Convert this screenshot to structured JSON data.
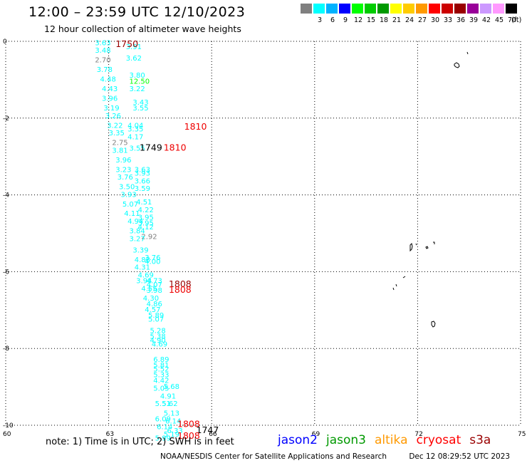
{
  "header": {
    "title": "12:00 – 23:59 UTC 12/10/2023",
    "subtitle": "12 hour collection of altimeter wave heights"
  },
  "legend": {
    "unit": "(ft)",
    "bins": [
      {
        "label": "",
        "color": "#808080"
      },
      {
        "label": "3",
        "color": "#00ffff"
      },
      {
        "label": "6",
        "color": "#00b2ff"
      },
      {
        "label": "9",
        "color": "#0000ff"
      },
      {
        "label": "12",
        "color": "#00ff00"
      },
      {
        "label": "15",
        "color": "#00cc00"
      },
      {
        "label": "18",
        "color": "#009900"
      },
      {
        "label": "21",
        "color": "#ffff00"
      },
      {
        "label": "24",
        "color": "#ffcc00"
      },
      {
        "label": "27",
        "color": "#ff9900"
      },
      {
        "label": "30",
        "color": "#ff0000"
      },
      {
        "label": "33",
        "color": "#cc0000"
      },
      {
        "label": "36",
        "color": "#990000"
      },
      {
        "label": "39",
        "color": "#990099"
      },
      {
        "label": "42",
        "color": "#cc99ff"
      },
      {
        "label": "45",
        "color": "#ff99ff"
      },
      {
        "label": "70",
        "color": "#000000"
      }
    ]
  },
  "axes": {
    "lon_ticks": [
      60,
      63,
      66,
      69,
      72,
      75
    ],
    "lat_ticks": [
      0,
      -2,
      -4,
      -6,
      -8,
      -10
    ],
    "lon_range": [
      60,
      75
    ],
    "lat_range": [
      -10,
      0
    ]
  },
  "chart_data": {
    "type": "scatter",
    "swh_ft": [
      {
        "lon": 62.6,
        "lat": -0.1,
        "v": "3.63",
        "color": "#00ffff"
      },
      {
        "lon": 63.5,
        "lat": -0.2,
        "v": "3.91",
        "color": "#00ffff"
      },
      {
        "lon": 62.6,
        "lat": -0.3,
        "v": "3.48",
        "color": "#00ffff"
      },
      {
        "lon": 63.5,
        "lat": -0.5,
        "v": "3.62",
        "color": "#00ffff"
      },
      {
        "lon": 62.6,
        "lat": -0.55,
        "v": "2.70",
        "color": "#808080"
      },
      {
        "lon": 62.65,
        "lat": -0.8,
        "v": "3.78",
        "color": "#00ffff"
      },
      {
        "lon": 63.6,
        "lat": -0.95,
        "v": "3.80",
        "color": "#00ffff"
      },
      {
        "lon": 62.75,
        "lat": -1.05,
        "v": "4.48",
        "color": "#00ffff"
      },
      {
        "lon": 63.6,
        "lat": -1.1,
        "v": "12.50",
        "color": "#00ff00"
      },
      {
        "lon": 62.8,
        "lat": -1.3,
        "v": "4.43",
        "color": "#00ffff"
      },
      {
        "lon": 63.6,
        "lat": -1.3,
        "v": "3.22",
        "color": "#00ffff"
      },
      {
        "lon": 62.8,
        "lat": -1.55,
        "v": "3.96",
        "color": "#00ffff"
      },
      {
        "lon": 63.7,
        "lat": -1.65,
        "v": "3.43",
        "color": "#00ffff"
      },
      {
        "lon": 62.85,
        "lat": -1.8,
        "v": "3.19",
        "color": "#00ffff"
      },
      {
        "lon": 63.7,
        "lat": -1.8,
        "v": "3.55",
        "color": "#00ffff"
      },
      {
        "lon": 62.9,
        "lat": -2.0,
        "v": "3.26",
        "color": "#00ffff"
      },
      {
        "lon": 62.95,
        "lat": -2.25,
        "v": "3.22",
        "color": "#00ffff"
      },
      {
        "lon": 63.55,
        "lat": -2.25,
        "v": "4.04",
        "color": "#00ffff"
      },
      {
        "lon": 63.55,
        "lat": -2.35,
        "v": "3.35",
        "color": "#00ffff"
      },
      {
        "lon": 63.0,
        "lat": -2.45,
        "v": "3.35",
        "color": "#00ffff"
      },
      {
        "lon": 63.55,
        "lat": -2.55,
        "v": "4.17",
        "color": "#00ffff"
      },
      {
        "lon": 63.1,
        "lat": -2.7,
        "v": "2.75",
        "color": "#808080"
      },
      {
        "lon": 63.6,
        "lat": -2.85,
        "v": "3.55",
        "color": "#00ffff"
      },
      {
        "lon": 63.1,
        "lat": -2.9,
        "v": "3.81",
        "color": "#00ffff"
      },
      {
        "lon": 63.2,
        "lat": -3.15,
        "v": "3.96",
        "color": "#00ffff"
      },
      {
        "lon": 63.2,
        "lat": -3.4,
        "v": "3.23",
        "color": "#00ffff"
      },
      {
        "lon": 63.75,
        "lat": -3.4,
        "v": "3.63",
        "color": "#00ffff"
      },
      {
        "lon": 63.75,
        "lat": -3.5,
        "v": "3.93",
        "color": "#00ffff"
      },
      {
        "lon": 63.25,
        "lat": -3.6,
        "v": "3.76",
        "color": "#00ffff"
      },
      {
        "lon": 63.75,
        "lat": -3.7,
        "v": "3.66",
        "color": "#00ffff"
      },
      {
        "lon": 63.3,
        "lat": -3.85,
        "v": "3.50",
        "color": "#00ffff"
      },
      {
        "lon": 63.75,
        "lat": -3.9,
        "v": "3.59",
        "color": "#00ffff"
      },
      {
        "lon": 63.35,
        "lat": -4.05,
        "v": "3.93",
        "color": "#00ffff"
      },
      {
        "lon": 63.8,
        "lat": -4.25,
        "v": "4.51",
        "color": "#00ffff"
      },
      {
        "lon": 63.4,
        "lat": -4.3,
        "v": "5.07",
        "color": "#00ffff"
      },
      {
        "lon": 63.85,
        "lat": -4.45,
        "v": "4.22",
        "color": "#00ffff"
      },
      {
        "lon": 63.45,
        "lat": -4.55,
        "v": "4.11",
        "color": "#00ffff"
      },
      {
        "lon": 63.85,
        "lat": -4.65,
        "v": "3.95",
        "color": "#00ffff"
      },
      {
        "lon": 63.55,
        "lat": -4.75,
        "v": "4.94",
        "color": "#00ffff"
      },
      {
        "lon": 63.85,
        "lat": -4.8,
        "v": "3.95",
        "color": "#00ffff"
      },
      {
        "lon": 63.85,
        "lat": -4.9,
        "v": "4.12",
        "color": "#00ffff"
      },
      {
        "lon": 63.6,
        "lat": -5.0,
        "v": "3.84",
        "color": "#00ffff"
      },
      {
        "lon": 63.95,
        "lat": -5.15,
        "v": "2.92",
        "color": "#808080"
      },
      {
        "lon": 63.6,
        "lat": -5.2,
        "v": "3.27",
        "color": "#00ffff"
      },
      {
        "lon": 63.7,
        "lat": -5.5,
        "v": "3.39",
        "color": "#00ffff"
      },
      {
        "lon": 64.05,
        "lat": -5.7,
        "v": "3.76",
        "color": "#00ffff"
      },
      {
        "lon": 63.75,
        "lat": -5.75,
        "v": "4.88",
        "color": "#00ffff"
      },
      {
        "lon": 64.05,
        "lat": -5.8,
        "v": "4.00",
        "color": "#00ffff"
      },
      {
        "lon": 63.75,
        "lat": -5.95,
        "v": "4.31",
        "color": "#00ffff"
      },
      {
        "lon": 63.85,
        "lat": -6.15,
        "v": "4.69",
        "color": "#00ffff"
      },
      {
        "lon": 63.8,
        "lat": -6.3,
        "v": "3.94",
        "color": "#00ffff"
      },
      {
        "lon": 64.1,
        "lat": -6.3,
        "v": "4.73",
        "color": "#00ffff"
      },
      {
        "lon": 64.1,
        "lat": -6.4,
        "v": "4.07",
        "color": "#00ffff"
      },
      {
        "lon": 63.95,
        "lat": -6.5,
        "v": "4.55",
        "color": "#00ffff"
      },
      {
        "lon": 64.1,
        "lat": -6.55,
        "v": "3.98",
        "color": "#00ffff"
      },
      {
        "lon": 64.0,
        "lat": -6.75,
        "v": "4.30",
        "color": "#00ffff"
      },
      {
        "lon": 64.1,
        "lat": -6.9,
        "v": "4.86",
        "color": "#00ffff"
      },
      {
        "lon": 64.05,
        "lat": -7.05,
        "v": "4.57",
        "color": "#00ffff"
      },
      {
        "lon": 64.15,
        "lat": -7.2,
        "v": "5.89",
        "color": "#00ffff"
      },
      {
        "lon": 64.15,
        "lat": -7.3,
        "v": "5.07",
        "color": "#00ffff"
      },
      {
        "lon": 64.2,
        "lat": -7.6,
        "v": "5.28",
        "color": "#00ffff"
      },
      {
        "lon": 64.2,
        "lat": -7.75,
        "v": "5.38",
        "color": "#00ffff"
      },
      {
        "lon": 64.2,
        "lat": -7.85,
        "v": "4.90",
        "color": "#00ffff"
      },
      {
        "lon": 64.25,
        "lat": -7.95,
        "v": "4.69",
        "color": "#00ffff"
      },
      {
        "lon": 64.3,
        "lat": -8.35,
        "v": "6.89",
        "color": "#00ffff"
      },
      {
        "lon": 64.3,
        "lat": -8.5,
        "v": "5.81",
        "color": "#00ffff"
      },
      {
        "lon": 64.3,
        "lat": -8.6,
        "v": "5.52",
        "color": "#00ffff"
      },
      {
        "lon": 64.3,
        "lat": -8.75,
        "v": "5.33",
        "color": "#00ffff"
      },
      {
        "lon": 64.3,
        "lat": -8.9,
        "v": "4.42",
        "color": "#00ffff"
      },
      {
        "lon": 64.6,
        "lat": -9.05,
        "v": "5.68",
        "color": "#00ffff"
      },
      {
        "lon": 64.3,
        "lat": -9.1,
        "v": "5.05",
        "color": "#00ffff"
      },
      {
        "lon": 64.5,
        "lat": -9.3,
        "v": "4.91",
        "color": "#00ffff"
      },
      {
        "lon": 64.35,
        "lat": -9.5,
        "v": "5.51",
        "color": "#00ffff"
      },
      {
        "lon": 64.55,
        "lat": -9.5,
        "v": "5.62",
        "color": "#00ffff"
      },
      {
        "lon": 64.6,
        "lat": -9.75,
        "v": "5.13",
        "color": "#00ffff"
      },
      {
        "lon": 64.35,
        "lat": -9.9,
        "v": "6.09",
        "color": "#00ffff"
      },
      {
        "lon": 64.65,
        "lat": -9.95,
        "v": "6.14",
        "color": "#00ffff"
      },
      {
        "lon": 64.4,
        "lat": -10.1,
        "v": "6.14",
        "color": "#00ffff"
      },
      {
        "lon": 64.7,
        "lat": -10.2,
        "v": "6.33",
        "color": "#00ffff"
      },
      {
        "lon": 64.6,
        "lat": -10.3,
        "v": "5.19",
        "color": "#00ffff"
      },
      {
        "lon": 64.35,
        "lat": -10.4,
        "v": "5.99",
        "color": "#00ffff"
      }
    ],
    "times": [
      {
        "lon": 63.2,
        "lat": -0.15,
        "t": "1750",
        "color": "#990000"
      },
      {
        "lon": 65.2,
        "lat": -2.3,
        "t": "1810",
        "color": "#ee0000"
      },
      {
        "lon": 63.9,
        "lat": -2.85,
        "t": "1749",
        "color": "#000000"
      },
      {
        "lon": 64.6,
        "lat": -2.85,
        "t": "1810",
        "color": "#ee0000"
      },
      {
        "lon": 64.75,
        "lat": -6.4,
        "t": "1808",
        "color": "#990000"
      },
      {
        "lon": 64.75,
        "lat": -6.55,
        "t": "1808",
        "color": "#ee0000"
      },
      {
        "lon": 65.0,
        "lat": -10.05,
        "t": "1808",
        "color": "#ee0000"
      },
      {
        "lon": 65.55,
        "lat": -10.2,
        "t": "1747",
        "color": "#000000"
      },
      {
        "lon": 65.0,
        "lat": -10.35,
        "t": "1808",
        "color": "#ee0000"
      }
    ]
  },
  "note": "note: 1) Time is in UTC; 2) SWH is in feet",
  "satellites": [
    {
      "name": "jason2",
      "color": "#0000ff"
    },
    {
      "name": "jason3",
      "color": "#009900"
    },
    {
      "name": "altika",
      "color": "#ff9900"
    },
    {
      "name": "cryosat",
      "color": "#ff0000"
    },
    {
      "name": "s3a",
      "color": "#990000"
    }
  ],
  "footer": {
    "source": "NOAA/NESDIS Center for Satellite Applications and Research",
    "timestamp": "Dec 12 08:29:52 UTC 2023"
  }
}
